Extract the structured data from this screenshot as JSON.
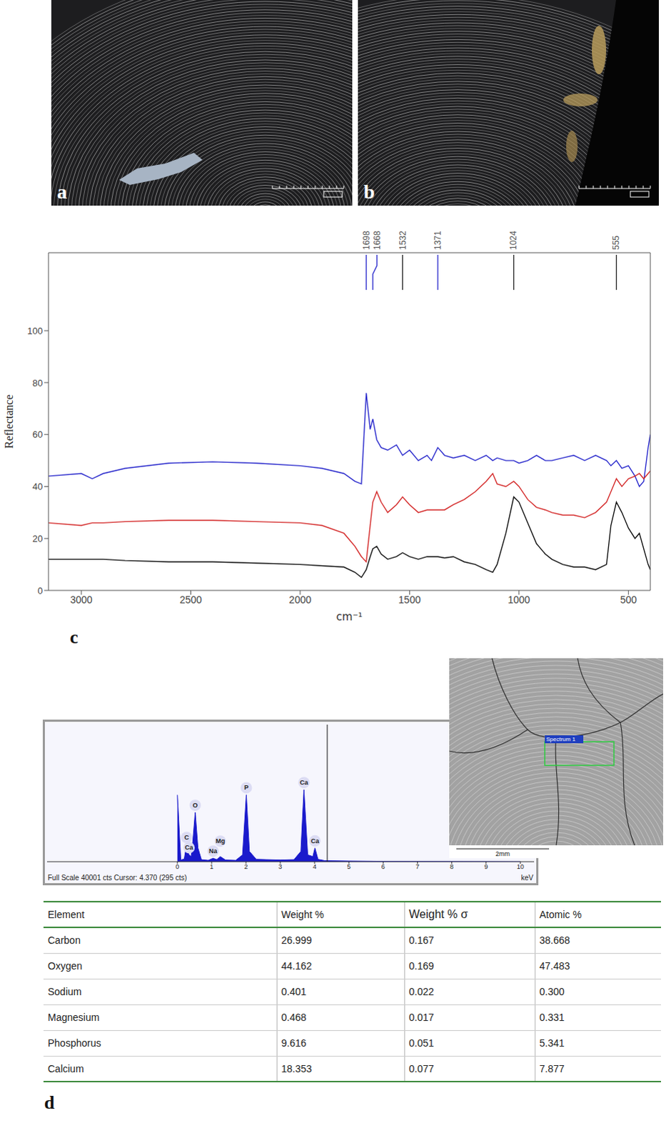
{
  "photos": [
    {
      "panel": "a"
    },
    {
      "panel": "b"
    }
  ],
  "chart_data": [
    {
      "type": "line",
      "panel": "c",
      "x_label": "cm⁻¹",
      "y_label": "Reflectance",
      "x": [
        3150,
        3000,
        2950,
        2900,
        2800,
        2600,
        2400,
        2200,
        2000,
        1900,
        1800,
        1750,
        1720,
        1698,
        1680,
        1668,
        1650,
        1630,
        1600,
        1560,
        1532,
        1500,
        1460,
        1420,
        1400,
        1371,
        1340,
        1300,
        1250,
        1200,
        1150,
        1120,
        1100,
        1060,
        1024,
        1000,
        960,
        920,
        880,
        850,
        800,
        750,
        700,
        650,
        600,
        580,
        555,
        530,
        500,
        470,
        450,
        430,
        410,
        400
      ],
      "series": [
        {
          "color": "#2a2acc",
          "values": [
            44,
            45,
            43,
            45,
            47,
            49,
            49.5,
            49,
            48,
            47,
            45,
            42,
            41,
            76,
            62,
            66,
            58,
            55,
            54,
            56,
            52,
            54,
            50,
            52,
            50,
            55,
            52,
            51,
            52,
            50,
            52,
            50,
            51,
            50,
            50,
            49,
            50,
            52,
            50,
            50,
            51,
            52,
            50,
            52,
            50,
            48,
            50,
            47,
            48,
            44,
            40,
            42,
            55,
            60
          ]
        },
        {
          "color": "#d42a2a",
          "values": [
            26,
            25,
            26,
            26,
            26.5,
            27,
            27,
            26.5,
            26,
            25,
            22,
            17,
            13,
            11,
            25,
            34,
            38,
            34,
            30,
            33,
            36,
            33,
            30,
            31,
            31,
            31,
            31,
            33,
            35,
            38,
            42,
            45,
            41,
            40,
            42,
            40,
            35,
            32,
            31,
            30,
            29,
            29,
            28,
            30,
            34,
            38,
            43,
            40,
            43,
            44,
            45,
            43,
            45,
            46
          ]
        },
        {
          "color": "#111111",
          "values": [
            12,
            12,
            12,
            12,
            11.5,
            11,
            11,
            10.5,
            10,
            9.5,
            9,
            7,
            5,
            8,
            13,
            16,
            17,
            14,
            12,
            13,
            14.5,
            13,
            12,
            13,
            13,
            13,
            12.5,
            13,
            11,
            10,
            8,
            7,
            10,
            22,
            36,
            34,
            26,
            18,
            14,
            12,
            10,
            9,
            9,
            8,
            10,
            25,
            34,
            30,
            24,
            20,
            22,
            16,
            10,
            8
          ]
        }
      ],
      "xlim": [
        3150,
        400
      ],
      "xticks": [
        3000,
        2500,
        2000,
        1500,
        1000,
        500
      ],
      "ylim": [
        0,
        130
      ],
      "yticks": [
        0,
        20,
        40,
        60,
        80,
        100
      ],
      "annotations": [
        {
          "x": 1698,
          "color": "#2a2acc"
        },
        {
          "x": 1668,
          "color": "#2a2acc"
        },
        {
          "x": 1532,
          "color": "#222222"
        },
        {
          "x": 1371,
          "color": "#2a2acc"
        },
        {
          "x": 1024,
          "color": "#222222"
        },
        {
          "x": 555,
          "color": "#222222"
        }
      ]
    },
    {
      "type": "area",
      "x_label": "keV",
      "color": "#1a1acc",
      "x": [
        0,
        0.05,
        0.1,
        0.2,
        0.27,
        0.3,
        0.34,
        0.4,
        0.45,
        0.52,
        0.6,
        0.7,
        0.9,
        1.04,
        1.15,
        1.25,
        1.4,
        1.7,
        1.9,
        2.01,
        2.1,
        2.3,
        2.6,
        3.0,
        3.4,
        3.6,
        3.69,
        3.8,
        3.95,
        4.01,
        4.1,
        4.3,
        5,
        6,
        8,
        10
      ],
      "values": [
        19500,
        10000,
        500,
        800,
        5000,
        3500,
        2000,
        1500,
        6000,
        14400,
        4000,
        600,
        400,
        1000,
        600,
        1500,
        500,
        400,
        2000,
        19500,
        3000,
        700,
        600,
        500,
        600,
        3000,
        21000,
        2000,
        1500,
        4000,
        700,
        300,
        200,
        100,
        50,
        0
      ],
      "xlim": [
        -3.8,
        10.4
      ],
      "xticks": [
        0,
        1,
        2,
        3,
        4,
        5,
        6,
        7,
        8,
        9,
        10
      ],
      "ylim": [
        0,
        40001
      ],
      "tick_labels": "x",
      "caption": "Full Scale 40001 cts Cursor: 4.370  (295 cts)",
      "cursor": 4.37,
      "peak_labels": [
        {
          "x": 0.27,
          "label": "C"
        },
        {
          "x": 0.34,
          "label": "Ca"
        },
        {
          "x": 0.52,
          "label": "O"
        },
        {
          "x": 1.04,
          "label": "Na"
        },
        {
          "x": 1.25,
          "label": "Mg"
        },
        {
          "x": 2.01,
          "label": "P"
        },
        {
          "x": 3.69,
          "label": "Ca"
        },
        {
          "x": 4.01,
          "label": "Ca"
        }
      ]
    }
  ],
  "sem_image": {
    "region_label": "Spectrum 1",
    "scale_label": "2mm"
  },
  "table": {
    "panel": "d",
    "header": [
      "Element",
      "Weight %",
      "Weight % σ",
      "Atomic %"
    ],
    "rows": [
      [
        "Carbon",
        "26.999",
        "0.167",
        "38.668"
      ],
      [
        "Oxygen",
        "44.162",
        "0.169",
        "47.483"
      ],
      [
        "Sodium",
        "0.401",
        "0.022",
        "0.300"
      ],
      [
        "Magnesium",
        "0.468",
        "0.017",
        "0.331"
      ],
      [
        "Phosphorus",
        "9.616",
        "0.051",
        "5.341"
      ],
      [
        "Calcium",
        "18.353",
        "0.077",
        "7.877"
      ]
    ]
  }
}
